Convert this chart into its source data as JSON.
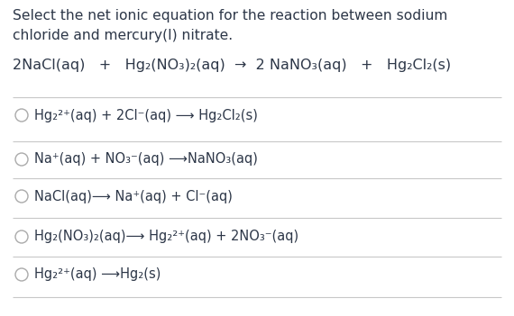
{
  "background_color": "#ffffff",
  "title_line1": "Select the net ionic equation for the reaction between sodium",
  "title_line2": "chloride and mercury(I) nitrate.",
  "main_equation": "2NaCl(aq)   +   Hg₂(NO₃)₂(aq)  →  2 NaNO₃(aq)   +   Hg₂Cl₂(s)",
  "options": [
    "Hg₂²⁺(aq) + 2Cl⁻(aq) ⟶ Hg₂Cl₂(s)",
    "Na⁺(aq) + NO₃⁻(aq) ⟶NaNO₃(aq)",
    "NaCl(aq)⟶ Na⁺(aq) + Cl⁻(aq)",
    "Hg₂(NO₃)₂(aq)⟶ Hg₂²⁺(aq) + 2NO₃⁻(aq)",
    "Hg₂²⁺(aq) ⟶Hg₂(s)"
  ],
  "text_color": "#2d3748",
  "line_color": "#c8c8c8",
  "circle_color": "#aaaaaa",
  "font_size_title": 11.2,
  "font_size_equation": 11.5,
  "font_size_options": 10.5
}
